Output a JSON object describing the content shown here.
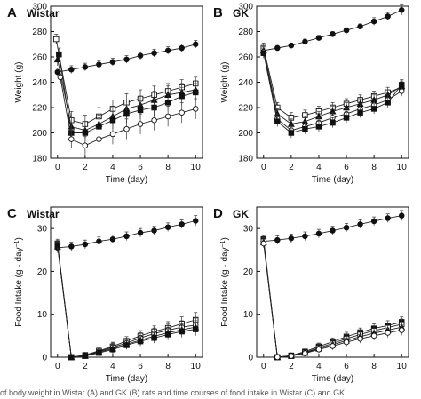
{
  "caption": "of body weight in Wistar (A) and GK (B) rats and time courses of food intake in Wistar (C) and GK",
  "chart_data": [
    {
      "type": "line",
      "panel": "A",
      "title": "Wistar",
      "xlabel": "Time (day)",
      "ylabel": "Weight (g)",
      "xlim": [
        -0.5,
        10.5
      ],
      "ylim": [
        180,
        300
      ],
      "xticks": [
        0,
        2,
        4,
        6,
        8,
        10
      ],
      "yticks": [
        180,
        200,
        220,
        240,
        260,
        280,
        300
      ],
      "series": [
        {
          "marker": "filled-circle",
          "x": [
            0,
            1,
            2,
            3,
            4,
            5,
            6,
            7,
            8,
            9,
            10
          ],
          "y": [
            248,
            250,
            252,
            254,
            256,
            258,
            261,
            263,
            265,
            267,
            270
          ],
          "err": [
            3,
            3,
            3,
            3,
            3,
            3,
            3,
            3,
            3,
            3,
            3
          ]
        },
        {
          "marker": "open-square",
          "x": [
            -0.1,
            1,
            2,
            3,
            4,
            5,
            6,
            7,
            8,
            9,
            10
          ],
          "y": [
            274,
            210,
            207,
            213,
            219,
            224,
            227,
            230,
            233,
            236,
            239
          ],
          "err": [
            4,
            7,
            7,
            7,
            7,
            7,
            7,
            7,
            6,
            6,
            5
          ]
        },
        {
          "marker": "filled-triangle",
          "x": [
            0,
            1,
            2,
            3,
            4,
            5,
            6,
            7,
            8,
            9,
            10
          ],
          "y": [
            258,
            205,
            202,
            207,
            213,
            219,
            222,
            226,
            230,
            232,
            234
          ],
          "err": [
            5,
            7,
            7,
            7,
            7,
            7,
            7,
            7,
            7,
            7,
            7
          ]
        },
        {
          "marker": "filled-square",
          "x": [
            0.1,
            1,
            2,
            3,
            4,
            5,
            6,
            7,
            8,
            9,
            10
          ],
          "y": [
            262,
            200,
            200,
            205,
            210,
            215,
            218,
            220,
            224,
            229,
            232
          ],
          "err": [
            5,
            7,
            7,
            7,
            7,
            7,
            7,
            7,
            7,
            7,
            7
          ]
        },
        {
          "marker": "open-circle",
          "x": [
            0.2,
            1,
            2,
            3,
            4,
            5,
            6,
            7,
            8,
            9,
            10
          ],
          "y": [
            244,
            195,
            190,
            195,
            199,
            203,
            207,
            210,
            213,
            216,
            219
          ],
          "err": [
            5,
            7,
            7,
            8,
            8,
            8,
            8,
            8,
            8,
            8,
            8
          ]
        }
      ]
    },
    {
      "type": "line",
      "panel": "B",
      "title": "GK",
      "xlabel": "Time (day)",
      "ylabel": "Weight (g)",
      "xlim": [
        -0.5,
        10.5
      ],
      "ylim": [
        180,
        300
      ],
      "xticks": [
        0,
        2,
        4,
        6,
        8,
        10
      ],
      "yticks": [
        180,
        200,
        220,
        240,
        260,
        280,
        300
      ],
      "series": [
        {
          "marker": "filled-circle",
          "x": [
            0,
            1,
            2,
            3,
            4,
            5,
            6,
            7,
            8,
            9,
            10
          ],
          "y": [
            265,
            267,
            269,
            272,
            275,
            278,
            281,
            284,
            288,
            292,
            297
          ],
          "err": [
            3,
            2,
            2,
            2,
            2,
            2,
            2,
            2,
            3,
            3,
            4
          ]
        },
        {
          "marker": "open-square",
          "x": [
            0,
            1,
            2,
            3,
            4,
            5,
            6,
            7,
            8,
            9,
            10
          ],
          "y": [
            267,
            220,
            212,
            214,
            217,
            220,
            223,
            226,
            229,
            232,
            236
          ],
          "err": [
            4,
            4,
            4,
            4,
            4,
            4,
            4,
            4,
            4,
            4,
            4
          ]
        },
        {
          "marker": "filled-triangle",
          "x": [
            0,
            1,
            2,
            3,
            4,
            5,
            6,
            7,
            8,
            9,
            10
          ],
          "y": [
            265,
            215,
            207,
            209,
            213,
            217,
            220,
            223,
            226,
            230,
            237
          ],
          "err": [
            4,
            4,
            4,
            4,
            4,
            4,
            4,
            4,
            4,
            4,
            4
          ]
        },
        {
          "marker": "open-circle",
          "x": [
            0,
            1,
            2,
            3,
            4,
            5,
            6,
            7,
            8,
            9,
            10
          ],
          "y": [
            264,
            211,
            202,
            205,
            208,
            212,
            215,
            219,
            222,
            226,
            233
          ],
          "err": [
            4,
            4,
            4,
            4,
            4,
            4,
            4,
            4,
            4,
            4,
            4
          ]
        },
        {
          "marker": "filled-square",
          "x": [
            0,
            1,
            2,
            3,
            4,
            5,
            6,
            7,
            8,
            9,
            10
          ],
          "y": [
            263,
            209,
            200,
            203,
            205,
            208,
            212,
            216,
            219,
            224,
            238
          ],
          "err": [
            4,
            4,
            4,
            4,
            4,
            4,
            4,
            4,
            4,
            4,
            4
          ]
        }
      ]
    },
    {
      "type": "line",
      "panel": "C",
      "title": "Wistar",
      "xlabel": "Time (day)",
      "ylabel": "Food Intake (g · day",
      "ylabel_sup": "−1",
      "ylabel_end": ")",
      "xlim": [
        -0.5,
        10.5
      ],
      "ylim": [
        0,
        35
      ],
      "xticks": [
        0,
        2,
        4,
        6,
        8,
        10
      ],
      "yticks": [
        0,
        10,
        20,
        30
      ],
      "series": [
        {
          "marker": "filled-circle",
          "x": [
            0,
            1,
            2,
            3,
            4,
            5,
            6,
            7,
            8,
            9,
            10
          ],
          "y": [
            25.5,
            25.8,
            26.3,
            27,
            27.5,
            28.2,
            29,
            29.5,
            30.3,
            31,
            31.8
          ],
          "err": [
            1.2,
            1,
            1,
            1,
            1,
            1,
            1,
            1,
            1,
            1,
            1.2
          ]
        },
        {
          "marker": "open-square",
          "x": [
            0,
            1,
            2,
            3,
            4,
            5,
            6,
            7,
            8,
            9,
            10
          ],
          "y": [
            26.5,
            0,
            0.5,
            1.5,
            2.5,
            3.8,
            5,
            6,
            6.8,
            7.8,
            8.7
          ],
          "err": [
            1,
            0.3,
            0.5,
            0.8,
            1,
            1,
            1.2,
            1.3,
            1.5,
            1.6,
            1.7
          ]
        },
        {
          "marker": "open-circle",
          "x": [
            0,
            1,
            2,
            3,
            4,
            5,
            6,
            7,
            8,
            9,
            10
          ],
          "y": [
            26,
            0,
            0.4,
            1.3,
            2.3,
            3.3,
            4.5,
            5.5,
            6.3,
            7,
            7.5
          ],
          "err": [
            1,
            0.3,
            0.5,
            0.8,
            1,
            1,
            1.2,
            1.3,
            1.4,
            1.5,
            1.6
          ]
        },
        {
          "marker": "filled-triangle",
          "x": [
            0,
            1,
            2,
            3,
            4,
            5,
            6,
            7,
            8,
            9,
            10
          ],
          "y": [
            25.8,
            0,
            0.3,
            1.2,
            2,
            3,
            4,
            4.9,
            5.7,
            6.4,
            7
          ],
          "err": [
            1,
            0.3,
            0.5,
            0.8,
            1,
            1,
            1.1,
            1.2,
            1.3,
            1.4,
            1.5
          ]
        },
        {
          "marker": "filled-square",
          "x": [
            0,
            1,
            2,
            3,
            4,
            5,
            6,
            7,
            8,
            9,
            10
          ],
          "y": [
            26.2,
            0,
            0.3,
            1,
            1.8,
            2.8,
            3.7,
            4.5,
            5.3,
            6,
            6.5
          ],
          "err": [
            1,
            0.3,
            0.5,
            0.8,
            1,
            1,
            1.1,
            1.2,
            1.3,
            1.4,
            1.5
          ]
        }
      ]
    },
    {
      "type": "line",
      "panel": "D",
      "title": "GK",
      "xlabel": "Time (day)",
      "ylabel": "Food Intake (g · day",
      "ylabel_sup": "−1",
      "ylabel_end": ")",
      "xlim": [
        -0.5,
        10.5
      ],
      "ylim": [
        0,
        35
      ],
      "xticks": [
        0,
        2,
        4,
        6,
        8,
        10
      ],
      "yticks": [
        0,
        10,
        20,
        30
      ],
      "series": [
        {
          "marker": "filled-circle",
          "x": [
            0,
            1,
            2,
            3,
            4,
            5,
            6,
            7,
            8,
            9,
            10
          ],
          "y": [
            27,
            27.3,
            27.7,
            28.2,
            28.8,
            29.5,
            30.2,
            31,
            31.7,
            32.4,
            33
          ],
          "err": [
            1.2,
            1,
            1,
            1,
            1,
            1,
            1,
            1,
            1,
            1,
            1.2
          ]
        },
        {
          "marker": "filled-square",
          "x": [
            0,
            1,
            2,
            3,
            4,
            5,
            6,
            7,
            8,
            9,
            10
          ],
          "y": [
            27.5,
            0,
            0.4,
            1.3,
            2.5,
            3.6,
            4.8,
            5.8,
            6.7,
            7.4,
            8.2
          ],
          "err": [
            1,
            0.3,
            0.5,
            0.6,
            0.8,
            0.9,
            1,
            1,
            1.1,
            1.1,
            1.2
          ]
        },
        {
          "marker": "open-square",
          "x": [
            0,
            1,
            2,
            3,
            4,
            5,
            6,
            7,
            8,
            9,
            10
          ],
          "y": [
            27,
            0,
            0.3,
            1.1,
            2.2,
            3.2,
            4.3,
            5.3,
            6.2,
            6.9,
            7.7
          ],
          "err": [
            1,
            0.3,
            0.5,
            0.6,
            0.8,
            0.9,
            1,
            1,
            1.1,
            1.1,
            1.2
          ]
        },
        {
          "marker": "filled-triangle",
          "x": [
            0,
            1,
            2,
            3,
            4,
            5,
            6,
            7,
            8,
            9,
            10
          ],
          "y": [
            26.8,
            0,
            0.3,
            1,
            2,
            2.9,
            3.9,
            4.8,
            5.6,
            6.3,
            7
          ],
          "err": [
            1,
            0.3,
            0.5,
            0.6,
            0.8,
            0.9,
            1,
            1,
            1.1,
            1.1,
            1.2
          ]
        },
        {
          "marker": "open-circle",
          "x": [
            0,
            1,
            2,
            3,
            4,
            5,
            6,
            7,
            8,
            9,
            10
          ],
          "y": [
            26.5,
            0,
            0.3,
            0.9,
            1.8,
            2.6,
            3.5,
            4.3,
            5,
            5.7,
            6.3
          ],
          "err": [
            1,
            0.3,
            0.5,
            0.6,
            0.8,
            0.9,
            1,
            1,
            1.1,
            1.1,
            1.2
          ]
        }
      ]
    }
  ]
}
